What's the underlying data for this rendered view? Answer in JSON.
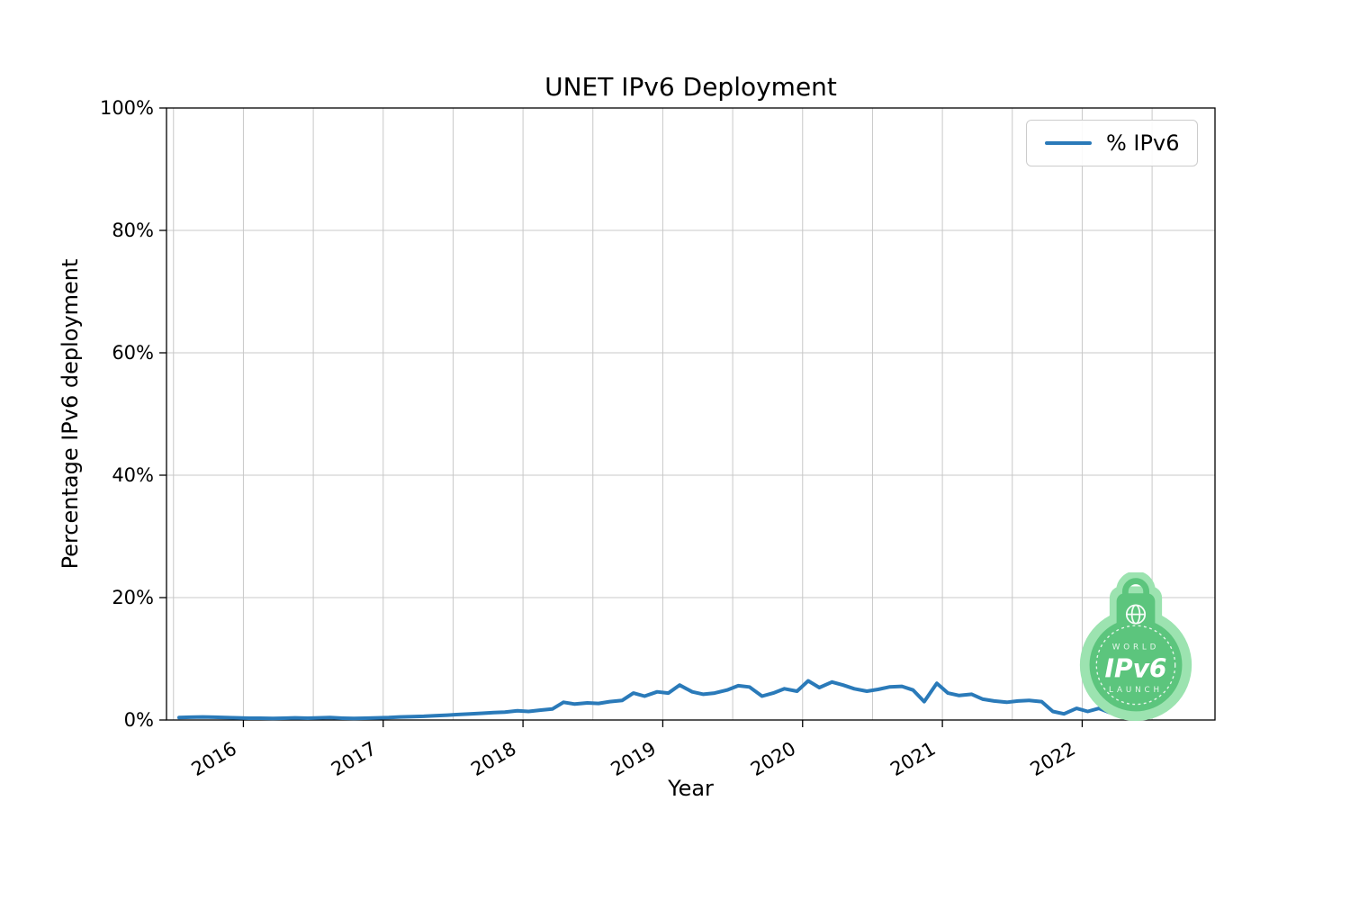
{
  "figure": {
    "title": "UNET IPv6 Deployment",
    "xlabel": "Year",
    "ylabel": "Percentage IPv6 deployment",
    "legend_label": "% IPv6",
    "line_color": "#2a7ab9",
    "grid_color": "#c8c8c8"
  },
  "badge": {
    "top_text": "WORLD",
    "main_text": "IPv6",
    "bottom_text": "LAUNCH",
    "outer_color": "#9ce3b0",
    "inner_color": "#5cc57d"
  },
  "chart_data": {
    "type": "line",
    "title": "UNET IPv6 Deployment",
    "xlabel": "Year",
    "ylabel": "Percentage IPv6 deployment",
    "xlim": [
      2015.45,
      2022.95
    ],
    "ylim": [
      0,
      100
    ],
    "xticks": [
      2016,
      2017,
      2018,
      2019,
      2020,
      2021,
      2022
    ],
    "xtick_labels": [
      "2016",
      "2017",
      "2018",
      "2019",
      "2020",
      "2021",
      "2022"
    ],
    "yticks": [
      0,
      20,
      40,
      60,
      80,
      100
    ],
    "ytick_labels": [
      "0%",
      "20%",
      "40%",
      "60%",
      "80%",
      "100%"
    ],
    "grid": true,
    "grid_x_start": 2015.5,
    "grid_x_end": 2022.5,
    "grid_x_step": 0.5,
    "legend_position": "upper right",
    "series": [
      {
        "name": "% IPv6",
        "color": "#2a7ab9",
        "x": [
          2015.54,
          2015.62,
          2015.71,
          2015.79,
          2015.87,
          2015.96,
          2016.04,
          2016.12,
          2016.21,
          2016.29,
          2016.37,
          2016.46,
          2016.54,
          2016.62,
          2016.71,
          2016.79,
          2016.87,
          2016.96,
          2017.04,
          2017.12,
          2017.21,
          2017.29,
          2017.37,
          2017.46,
          2017.54,
          2017.62,
          2017.71,
          2017.79,
          2017.87,
          2017.96,
          2018.04,
          2018.12,
          2018.21,
          2018.29,
          2018.37,
          2018.46,
          2018.54,
          2018.62,
          2018.71,
          2018.79,
          2018.87,
          2018.96,
          2019.04,
          2019.12,
          2019.21,
          2019.29,
          2019.37,
          2019.46,
          2019.54,
          2019.62,
          2019.71,
          2019.79,
          2019.87,
          2019.96,
          2020.04,
          2020.12,
          2020.21,
          2020.29,
          2020.37,
          2020.46,
          2020.54,
          2020.62,
          2020.71,
          2020.79,
          2020.87,
          2020.96,
          2021.04,
          2021.12,
          2021.21,
          2021.29,
          2021.37,
          2021.46,
          2021.54,
          2021.62,
          2021.71,
          2021.79,
          2021.87,
          2021.96,
          2022.04,
          2022.12,
          2022.21,
          2022.29,
          2022.37
        ],
        "y": [
          0.4,
          0.45,
          0.5,
          0.45,
          0.4,
          0.35,
          0.3,
          0.3,
          0.25,
          0.3,
          0.35,
          0.3,
          0.35,
          0.4,
          0.3,
          0.25,
          0.3,
          0.35,
          0.4,
          0.5,
          0.55,
          0.6,
          0.7,
          0.8,
          0.9,
          1.0,
          1.1,
          1.2,
          1.3,
          1.5,
          1.4,
          1.6,
          1.8,
          2.9,
          2.6,
          2.8,
          2.7,
          3.0,
          3.2,
          4.4,
          3.9,
          4.6,
          4.4,
          5.7,
          4.6,
          4.2,
          4.4,
          4.9,
          5.6,
          5.4,
          3.9,
          4.4,
          5.1,
          4.7,
          6.4,
          5.3,
          6.2,
          5.7,
          5.1,
          4.7,
          5.0,
          5.4,
          5.5,
          4.9,
          3.0,
          6.0,
          4.4,
          4.0,
          4.2,
          3.4,
          3.1,
          2.9,
          3.1,
          3.2,
          3.0,
          1.4,
          1.0,
          1.9,
          1.4,
          1.9,
          1.1,
          2.1,
          1.0
        ]
      }
    ]
  }
}
